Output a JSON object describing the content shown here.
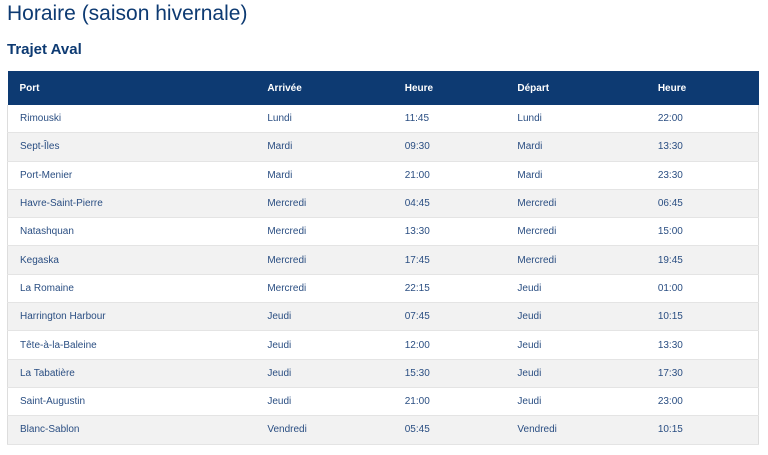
{
  "header": {
    "title": "Horaire (saison hivernale)",
    "subtitle": "Trajet Aval"
  },
  "table": {
    "columns": [
      "Port",
      "Arrivée",
      "Heure",
      "Départ",
      "Heure"
    ],
    "rows": [
      [
        "Rimouski",
        "Lundi",
        "11:45",
        "Lundi",
        "22:00"
      ],
      [
        "Sept-Îles",
        "Mardi",
        "09:30",
        "Mardi",
        "13:30"
      ],
      [
        "Port-Menier",
        "Mardi",
        "21:00",
        "Mardi",
        "23:30"
      ],
      [
        "Havre-Saint-Pierre",
        "Mercredi",
        "04:45",
        "Mercredi",
        "06:45"
      ],
      [
        "Natashquan",
        "Mercredi",
        "13:30",
        "Mercredi",
        "15:00"
      ],
      [
        "Kegaska",
        "Mercredi",
        "17:45",
        "Mercredi",
        "19:45"
      ],
      [
        "La Romaine",
        "Mercredi",
        "22:15",
        "Jeudi",
        "01:00"
      ],
      [
        "Harrington Harbour",
        "Jeudi",
        "07:45",
        "Jeudi",
        "10:15"
      ],
      [
        "Tête-à-la-Baleine",
        "Jeudi",
        "12:00",
        "Jeudi",
        "13:30"
      ],
      [
        "La Tabatière",
        "Jeudi",
        "15:30",
        "Jeudi",
        "17:30"
      ],
      [
        "Saint-Augustin",
        "Jeudi",
        "21:00",
        "Jeudi",
        "23:00"
      ],
      [
        "Blanc-Sablon",
        "Vendredi",
        "05:45",
        "Vendredi",
        "10:15"
      ]
    ]
  }
}
